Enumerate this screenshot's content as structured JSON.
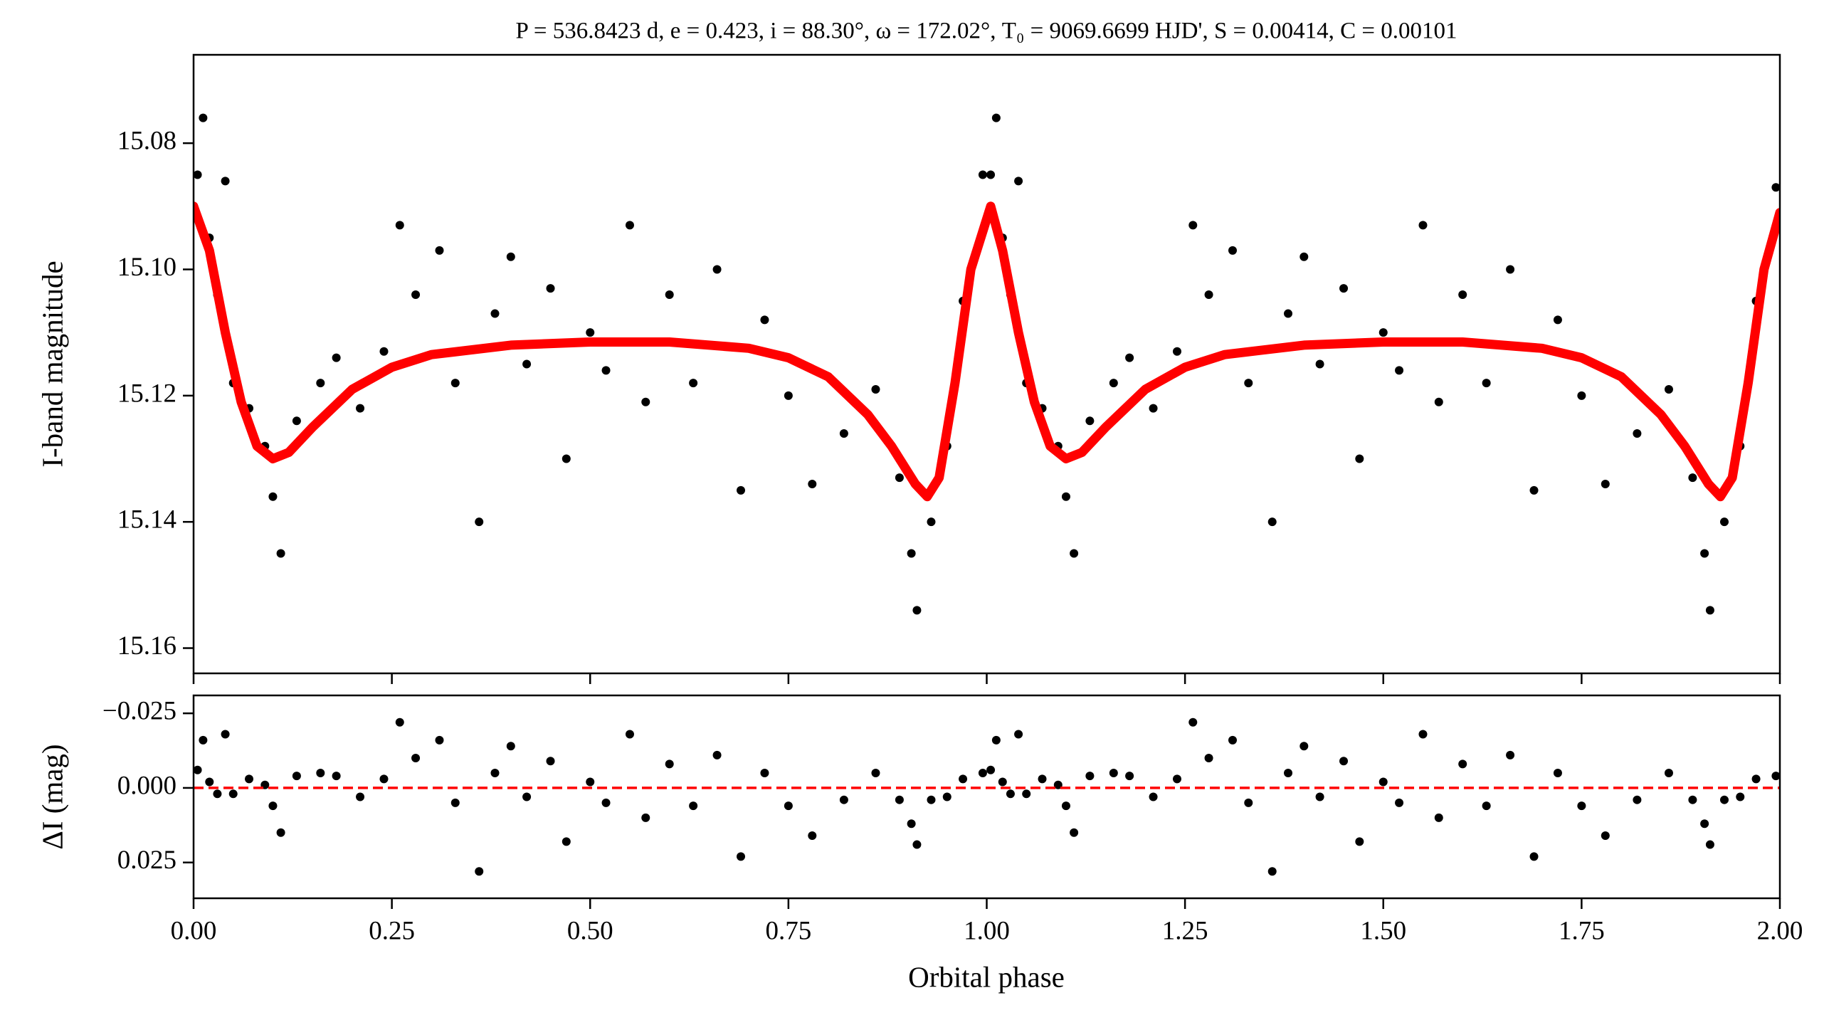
{
  "chart_data": [
    {
      "type": "scatter",
      "title": "P = 536.8423 d, e = 0.423, i = 88.30°, ω = 172.02°, T₀ = 9069.6699 HJD', S = 0.00414, C = 0.00101",
      "ylabel": "I-band magnitude",
      "xlim": [
        0,
        2
      ],
      "ylim": [
        15.066,
        15.164
      ],
      "invert_y": true,
      "yticks": [
        15.08,
        {
          "value": 15.1,
          "label": "15.10"
        },
        15.12,
        15.14,
        15.16
      ],
      "series": [
        {
          "type": "scatter",
          "color": "#000000",
          "x": [
            0.005,
            0.012,
            0.02,
            0.03,
            0.04,
            0.05,
            0.07,
            0.09,
            0.1,
            0.11,
            0.13,
            0.16,
            0.18,
            0.21,
            0.24,
            0.26,
            0.28,
            0.31,
            0.33,
            0.36,
            0.38,
            0.4,
            0.42,
            0.45,
            0.47,
            0.5,
            0.52,
            0.55,
            0.57,
            0.6,
            0.63,
            0.66,
            0.69,
            0.72,
            0.75,
            0.78,
            0.82,
            0.86,
            0.89,
            0.905,
            0.912,
            0.93,
            0.95,
            0.97,
            0.995,
            1.005,
            1.012,
            1.02,
            1.03,
            1.04,
            1.05,
            1.07,
            1.09,
            1.1,
            1.11,
            1.13,
            1.16,
            1.18,
            1.21,
            1.24,
            1.26,
            1.28,
            1.31,
            1.33,
            1.36,
            1.38,
            1.4,
            1.42,
            1.45,
            1.47,
            1.5,
            1.52,
            1.55,
            1.57,
            1.6,
            1.63,
            1.66,
            1.69,
            1.72,
            1.75,
            1.78,
            1.82,
            1.86,
            1.89,
            1.905,
            1.912,
            1.93,
            1.95,
            1.97,
            1.995
          ],
          "values": [
            15.085,
            15.076,
            15.095,
            15.104,
            15.086,
            15.118,
            15.122,
            15.128,
            15.136,
            15.145,
            15.124,
            15.118,
            15.114,
            15.122,
            15.113,
            15.093,
            15.104,
            15.097,
            15.118,
            15.14,
            15.107,
            15.098,
            15.115,
            15.103,
            15.13,
            15.11,
            15.116,
            15.093,
            15.121,
            15.104,
            15.118,
            15.1,
            15.135,
            15.108,
            15.12,
            15.134,
            15.126,
            15.119,
            15.133,
            15.145,
            15.154,
            15.14,
            15.128,
            15.105,
            15.085,
            15.085,
            15.076,
            15.095,
            15.104,
            15.086,
            15.118,
            15.122,
            15.128,
            15.136,
            15.145,
            15.124,
            15.118,
            15.114,
            15.122,
            15.113,
            15.093,
            15.104,
            15.097,
            15.118,
            15.14,
            15.107,
            15.098,
            15.115,
            15.103,
            15.13,
            15.11,
            15.116,
            15.093,
            15.121,
            15.104,
            15.118,
            15.1,
            15.135,
            15.108,
            15.12,
            15.134,
            15.126,
            15.119,
            15.133,
            15.145,
            15.154,
            15.14,
            15.128,
            15.105,
            15.087
          ]
        },
        {
          "type": "line",
          "color": "#ff0000",
          "x": [
            0,
            0.02,
            0.04,
            0.06,
            0.08,
            0.1,
            0.12,
            0.15,
            0.2,
            0.25,
            0.3,
            0.4,
            0.5,
            0.6,
            0.7,
            0.75,
            0.8,
            0.85,
            0.88,
            0.91,
            0.925,
            0.94,
            0.96,
            0.98,
            1.005,
            1.02,
            1.04,
            1.06,
            1.08,
            1.1,
            1.12,
            1.15,
            1.2,
            1.25,
            1.3,
            1.4,
            1.5,
            1.6,
            1.7,
            1.75,
            1.8,
            1.85,
            1.88,
            1.91,
            1.925,
            1.94,
            1.96,
            1.98,
            2.0
          ],
          "values": [
            15.09,
            15.097,
            15.11,
            15.121,
            15.128,
            15.13,
            15.129,
            15.125,
            15.119,
            15.1155,
            15.1135,
            15.112,
            15.1115,
            15.1115,
            15.1125,
            15.114,
            15.117,
            15.123,
            15.128,
            15.134,
            15.136,
            15.133,
            15.118,
            15.1,
            15.09,
            15.097,
            15.11,
            15.121,
            15.128,
            15.13,
            15.129,
            15.125,
            15.119,
            15.1155,
            15.1135,
            15.112,
            15.1115,
            15.1115,
            15.1125,
            15.114,
            15.117,
            15.123,
            15.128,
            15.134,
            15.136,
            15.133,
            15.118,
            15.1,
            15.091
          ]
        }
      ]
    },
    {
      "type": "scatter",
      "ylabel": "ΔI (mag)",
      "xlabel": "Orbital phase",
      "xlim": [
        0,
        2
      ],
      "ylim": [
        -0.031,
        0.037
      ],
      "invert_y": true,
      "xticks": [
        {
          "value": 0,
          "label": "0.00"
        },
        0.25,
        {
          "value": 0.5,
          "label": "0.50"
        },
        0.75,
        {
          "value": 1,
          "label": "1.00"
        },
        1.25,
        {
          "value": 1.5,
          "label": "1.50"
        },
        1.75,
        {
          "value": 2,
          "label": "2.00"
        }
      ],
      "yticks": [
        {
          "value": -0.025,
          "label": "−0.025"
        },
        {
          "value": 0,
          "label": "0.000"
        },
        0.025
      ],
      "reference_line": {
        "value": 0,
        "color": "#ff0000",
        "style": "dashed"
      },
      "series": [
        {
          "type": "scatter",
          "color": "#000000",
          "x": [
            0.005,
            0.012,
            0.02,
            0.03,
            0.04,
            0.05,
            0.07,
            0.09,
            0.1,
            0.11,
            0.13,
            0.16,
            0.18,
            0.21,
            0.24,
            0.26,
            0.28,
            0.31,
            0.33,
            0.36,
            0.38,
            0.4,
            0.42,
            0.45,
            0.47,
            0.5,
            0.52,
            0.55,
            0.57,
            0.6,
            0.63,
            0.66,
            0.69,
            0.72,
            0.75,
            0.78,
            0.82,
            0.86,
            0.89,
            0.905,
            0.912,
            0.93,
            0.95,
            0.97,
            0.995,
            1.005,
            1.012,
            1.02,
            1.03,
            1.04,
            1.05,
            1.07,
            1.09,
            1.1,
            1.11,
            1.13,
            1.16,
            1.18,
            1.21,
            1.24,
            1.26,
            1.28,
            1.31,
            1.33,
            1.36,
            1.38,
            1.4,
            1.42,
            1.45,
            1.47,
            1.5,
            1.52,
            1.55,
            1.57,
            1.6,
            1.63,
            1.66,
            1.69,
            1.72,
            1.75,
            1.78,
            1.82,
            1.86,
            1.89,
            1.905,
            1.912,
            1.93,
            1.95,
            1.97,
            1.995
          ],
          "values": [
            -0.006,
            -0.016,
            -0.002,
            0.002,
            -0.018,
            0.002,
            -0.003,
            -0.001,
            0.006,
            0.015,
            -0.004,
            -0.005,
            -0.004,
            0.003,
            -0.003,
            -0.022,
            -0.01,
            -0.016,
            0.005,
            0.028,
            -0.005,
            -0.014,
            0.003,
            -0.009,
            0.018,
            -0.002,
            0.005,
            -0.018,
            0.01,
            -0.008,
            0.006,
            -0.011,
            0.023,
            -0.005,
            0.006,
            0.016,
            0.004,
            -0.005,
            0.004,
            0.012,
            0.019,
            0.004,
            0.003,
            -0.003,
            -0.005,
            -0.006,
            -0.016,
            -0.002,
            0.002,
            -0.018,
            0.002,
            -0.003,
            -0.001,
            0.006,
            0.015,
            -0.004,
            -0.005,
            -0.004,
            0.003,
            -0.003,
            -0.022,
            -0.01,
            -0.016,
            0.005,
            0.028,
            -0.005,
            -0.014,
            0.003,
            -0.009,
            0.018,
            -0.002,
            0.005,
            -0.018,
            0.01,
            -0.008,
            0.006,
            -0.011,
            0.023,
            -0.005,
            0.006,
            0.016,
            0.004,
            -0.005,
            0.004,
            0.012,
            0.019,
            0.004,
            0.003,
            -0.003,
            -0.004
          ]
        }
      ]
    }
  ]
}
